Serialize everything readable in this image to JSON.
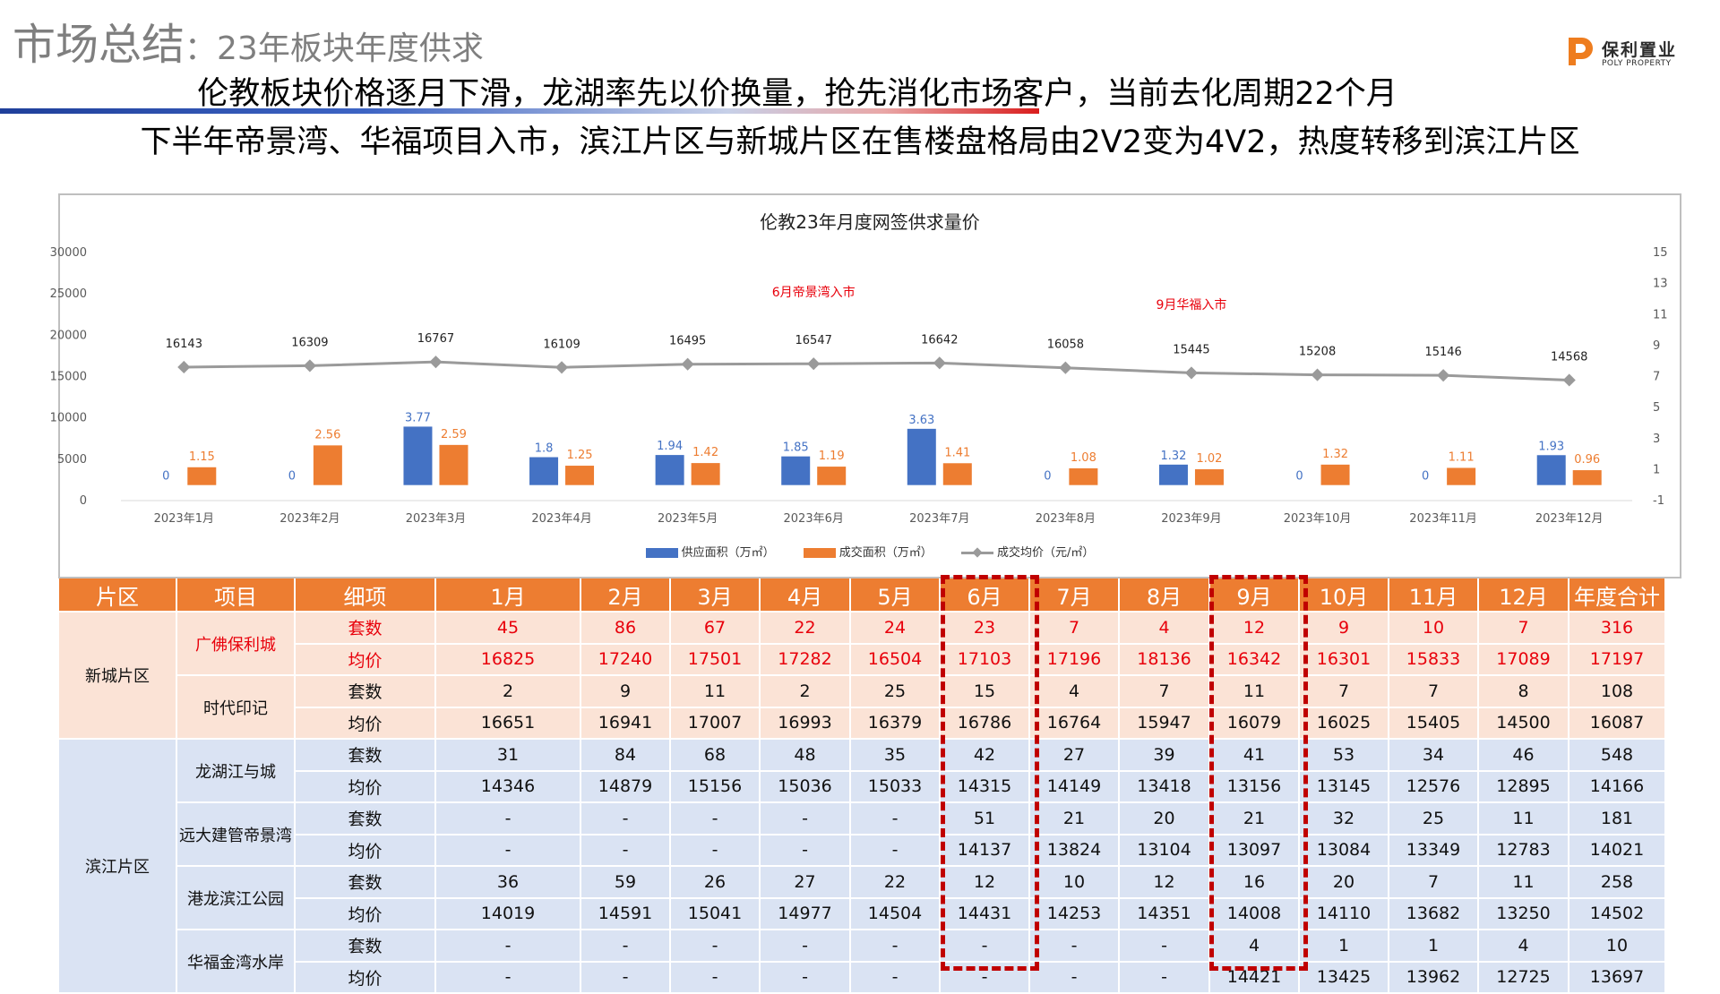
{
  "header": {
    "title_main": "市场总结",
    "title_sub": "：23年板块年度供求",
    "logo_cn": "保利置业",
    "logo_en": "POLY PROPERTY",
    "headline_1": "伦教板块价格逐月下滑，龙湖率先以价换量，抢先消化市场客户，当前去化周期22个月",
    "headline_2": "下半年帝景湾、华福项目入市，滨江片区与新城片区在售楼盘格局由2V2变为4V2，热度转移到滨江片区"
  },
  "colors": {
    "supply": "#4472c4",
    "deal": "#ed7d31",
    "price_line": "#9a9a9a",
    "annotation": "#e8000b",
    "table_header": "#ed7d31",
    "zone1_bg": "#fbe3d6",
    "zone2_bg": "#dae3f3",
    "highlight": "#c00000"
  },
  "chart_data": {
    "type": "bar",
    "title": "伦教23年月度网签供求量价",
    "categories": [
      "2023年1月",
      "2023年2月",
      "2023年3月",
      "2023年4月",
      "2023年5月",
      "2023年6月",
      "2023年7月",
      "2023年8月",
      "2023年9月",
      "2023年10月",
      "2023年11月",
      "2023年12月"
    ],
    "series": [
      {
        "name": "供应面积（万㎡）",
        "type": "bar",
        "axis": "right",
        "values": [
          0,
          0,
          3.77,
          1.8,
          1.94,
          1.85,
          3.63,
          0,
          1.32,
          0,
          0,
          1.93
        ]
      },
      {
        "name": "成交面积（万㎡）",
        "type": "bar",
        "axis": "right",
        "values": [
          1.15,
          2.56,
          2.59,
          1.25,
          1.42,
          1.19,
          1.41,
          1.08,
          1.02,
          1.32,
          1.11,
          0.96
        ]
      },
      {
        "name": "成交均价（元/㎡）",
        "type": "line",
        "axis": "left",
        "values": [
          16143,
          16309,
          16767,
          16109,
          16495,
          16547,
          16642,
          16058,
          15445,
          15208,
          15146,
          14568
        ]
      }
    ],
    "y_left": {
      "ticks": [
        0,
        5000,
        10000,
        15000,
        20000,
        25000,
        30000
      ],
      "range": [
        0,
        30000
      ]
    },
    "y_right": {
      "ticks": [
        -1,
        1,
        3,
        5,
        7,
        9,
        11,
        13,
        15
      ],
      "range": [
        -1,
        15
      ]
    },
    "annotations": [
      {
        "text": "6月帝景湾入市",
        "category": "2023年6月",
        "value": 24700
      },
      {
        "text": "9月华福入市",
        "category": "2023年9月",
        "value": 23200
      }
    ],
    "legend_position": "bottom",
    "grid": false
  },
  "table": {
    "headers": [
      "片区",
      "项目",
      "细项",
      "1月",
      "2月",
      "3月",
      "4月",
      "5月",
      "6月",
      "7月",
      "8月",
      "9月",
      "10月",
      "11月",
      "12月",
      "年度合计"
    ],
    "zones": [
      {
        "name": "新城片区",
        "projects": [
          {
            "name": "广佛保利城",
            "highlight": true,
            "rows": [
              {
                "metric": "套数",
                "values": [
                  "45",
                  "86",
                  "67",
                  "22",
                  "24",
                  "23",
                  "7",
                  "4",
                  "12",
                  "9",
                  "10",
                  "7",
                  "316"
                ]
              },
              {
                "metric": "均价",
                "values": [
                  "16825",
                  "17240",
                  "17501",
                  "17282",
                  "16504",
                  "17103",
                  "17196",
                  "18136",
                  "16342",
                  "16301",
                  "15833",
                  "17089",
                  "17197"
                ]
              }
            ]
          },
          {
            "name": "时代印记",
            "highlight": false,
            "rows": [
              {
                "metric": "套数",
                "values": [
                  "2",
                  "9",
                  "11",
                  "2",
                  "25",
                  "15",
                  "4",
                  "7",
                  "11",
                  "7",
                  "7",
                  "8",
                  "108"
                ]
              },
              {
                "metric": "均价",
                "values": [
                  "16651",
                  "16941",
                  "17007",
                  "16993",
                  "16379",
                  "16786",
                  "16764",
                  "15947",
                  "16079",
                  "16025",
                  "15405",
                  "14500",
                  "16087"
                ]
              }
            ]
          }
        ]
      },
      {
        "name": "滨江片区",
        "projects": [
          {
            "name": "龙湖江与城",
            "highlight": false,
            "rows": [
              {
                "metric": "套数",
                "values": [
                  "31",
                  "84",
                  "68",
                  "48",
                  "35",
                  "42",
                  "27",
                  "39",
                  "41",
                  "53",
                  "34",
                  "46",
                  "548"
                ]
              },
              {
                "metric": "均价",
                "values": [
                  "14346",
                  "14879",
                  "15156",
                  "15036",
                  "15033",
                  "14315",
                  "14149",
                  "13418",
                  "13156",
                  "13145",
                  "12576",
                  "12895",
                  "14166"
                ]
              }
            ]
          },
          {
            "name": "远大建管帝景湾",
            "highlight": false,
            "rows": [
              {
                "metric": "套数",
                "values": [
                  "-",
                  "-",
                  "-",
                  "-",
                  "-",
                  "51",
                  "21",
                  "20",
                  "21",
                  "32",
                  "25",
                  "11",
                  "181"
                ]
              },
              {
                "metric": "均价",
                "values": [
                  "-",
                  "-",
                  "-",
                  "-",
                  "-",
                  "14137",
                  "13824",
                  "13104",
                  "13097",
                  "13084",
                  "13349",
                  "12783",
                  "14021"
                ]
              }
            ]
          },
          {
            "name": "港龙滨江公园",
            "highlight": false,
            "rows": [
              {
                "metric": "套数",
                "values": [
                  "36",
                  "59",
                  "26",
                  "27",
                  "22",
                  "12",
                  "10",
                  "12",
                  "16",
                  "20",
                  "7",
                  "11",
                  "258"
                ]
              },
              {
                "metric": "均价",
                "values": [
                  "14019",
                  "14591",
                  "15041",
                  "14977",
                  "14504",
                  "14431",
                  "14253",
                  "14351",
                  "14008",
                  "14110",
                  "13682",
                  "13250",
                  "14502"
                ]
              }
            ]
          },
          {
            "name": "华福金湾水岸",
            "highlight": false,
            "rows": [
              {
                "metric": "套数",
                "values": [
                  "-",
                  "-",
                  "-",
                  "-",
                  "-",
                  "-",
                  "-",
                  "-",
                  "4",
                  "1",
                  "1",
                  "4",
                  "10"
                ]
              },
              {
                "metric": "均价",
                "values": [
                  "-",
                  "-",
                  "-",
                  "-",
                  "-",
                  "-",
                  "-",
                  "-",
                  "14421",
                  "13425",
                  "13962",
                  "12725",
                  "13697"
                ]
              }
            ]
          }
        ]
      }
    ]
  }
}
